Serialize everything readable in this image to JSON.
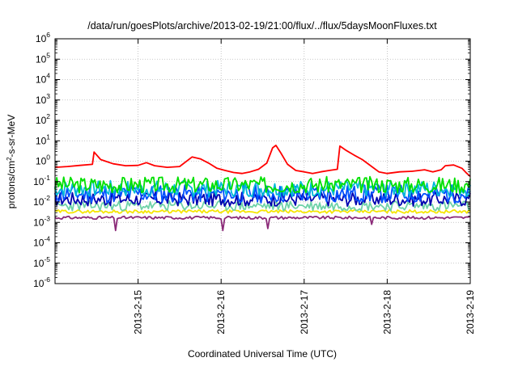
{
  "chart_data": {
    "type": "line",
    "title": "/data/run/goesPlots/archive/2013-02-19/21:00/flux/../flux/5daysMoonFluxes.txt",
    "xlabel": "Coordinated Universal Time (UTC)",
    "ylabel": {
      "pre": "protons/cm",
      "sup": "2",
      "post": "-s-sr-MeV"
    },
    "yscale": "log",
    "ylim_exponent": [
      -6,
      6
    ],
    "y_tick_labels": [
      {
        "base": "10",
        "exp": "6"
      },
      {
        "base": "10",
        "exp": "5"
      },
      {
        "base": "10",
        "exp": "4"
      },
      {
        "base": "10",
        "exp": "3"
      },
      {
        "base": "10",
        "exp": "2"
      },
      {
        "base": "10",
        "exp": "1"
      },
      {
        "base": "10",
        "exp": "0"
      },
      {
        "base": "10",
        "exp": "-1"
      },
      {
        "base": "10",
        "exp": "-2"
      },
      {
        "base": "10",
        "exp": "-3"
      },
      {
        "base": "10",
        "exp": "-4"
      },
      {
        "base": "10",
        "exp": "-5"
      },
      {
        "base": "10",
        "exp": "-6"
      }
    ],
    "xlim_days": [
      0,
      5.0
    ],
    "x_start": "2013-02-14 T00:00 (approx.)",
    "x_ticks": [
      {
        "label": "2013-2-15",
        "day": 1.0
      },
      {
        "label": "2013-2-16",
        "day": 2.0
      },
      {
        "label": "2013-2-17",
        "day": 3.0
      },
      {
        "label": "2013-2-18",
        "day": 4.0
      },
      {
        "label": "2013-2-19",
        "day": 5.0
      }
    ],
    "grid": true,
    "legend": "none",
    "series": [
      {
        "color": "#ff0000",
        "points": [
          [
            0.0,
            0.5
          ],
          [
            0.15,
            0.55
          ],
          [
            0.3,
            0.62
          ],
          [
            0.45,
            0.7
          ],
          [
            0.47,
            2.8
          ],
          [
            0.55,
            1.2
          ],
          [
            0.7,
            0.75
          ],
          [
            0.85,
            0.6
          ],
          [
            1.0,
            0.62
          ],
          [
            1.1,
            0.85
          ],
          [
            1.2,
            0.6
          ],
          [
            1.35,
            0.5
          ],
          [
            1.5,
            0.55
          ],
          [
            1.65,
            1.6
          ],
          [
            1.75,
            1.3
          ],
          [
            1.85,
            0.8
          ],
          [
            1.95,
            0.45
          ],
          [
            2.05,
            0.35
          ],
          [
            2.15,
            0.28
          ],
          [
            2.25,
            0.25
          ],
          [
            2.35,
            0.3
          ],
          [
            2.45,
            0.4
          ],
          [
            2.55,
            0.8
          ],
          [
            2.62,
            4.5
          ],
          [
            2.66,
            6.0
          ],
          [
            2.72,
            2.5
          ],
          [
            2.8,
            0.7
          ],
          [
            2.9,
            0.35
          ],
          [
            3.0,
            0.3
          ],
          [
            3.1,
            0.25
          ],
          [
            3.2,
            0.3
          ],
          [
            3.3,
            0.35
          ],
          [
            3.4,
            0.4
          ],
          [
            3.43,
            5.5
          ],
          [
            3.5,
            3.5
          ],
          [
            3.6,
            2.0
          ],
          [
            3.7,
            1.2
          ],
          [
            3.8,
            0.6
          ],
          [
            3.9,
            0.3
          ],
          [
            4.0,
            0.25
          ],
          [
            4.15,
            0.3
          ],
          [
            4.3,
            0.32
          ],
          [
            4.45,
            0.38
          ],
          [
            4.55,
            0.3
          ],
          [
            4.65,
            0.38
          ],
          [
            4.7,
            0.6
          ],
          [
            4.8,
            0.65
          ],
          [
            4.9,
            0.45
          ],
          [
            4.96,
            0.25
          ],
          [
            5.0,
            0.18
          ]
        ]
      },
      {
        "color": "#00e000",
        "level": 0.07,
        "noise_decades": 0.4,
        "seed": 3
      },
      {
        "color": "#00b8d8",
        "level": 0.045,
        "noise_decades": 0.4,
        "seed": 7
      },
      {
        "color": "#0050ff",
        "level": 0.025,
        "noise_decades": 0.45,
        "seed": 11
      },
      {
        "color": "#0000b0",
        "level": 0.014,
        "noise_decades": 0.35,
        "seed": 17
      },
      {
        "color": "#6fd2a8",
        "level": 0.0065,
        "noise_decades": 0.25,
        "seed": 23
      },
      {
        "color": "#f5e600",
        "level": 0.0034,
        "noise_decades": 0.08,
        "seed": 29
      },
      {
        "color": "#8b2a78",
        "level": 0.0017,
        "noise_decades": 0.07,
        "seed": 31,
        "dips": [
          [
            0.73,
            0.0004
          ],
          [
            2.02,
            0.0004
          ],
          [
            2.57,
            0.0005
          ],
          [
            3.82,
            0.0008
          ]
        ]
      }
    ]
  }
}
